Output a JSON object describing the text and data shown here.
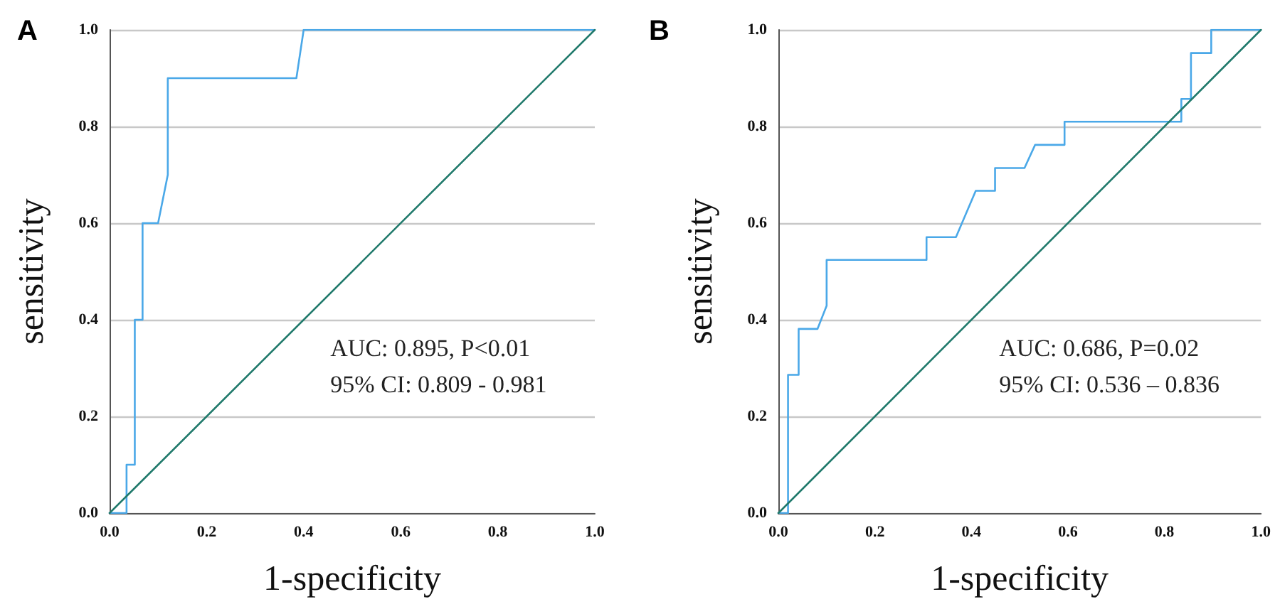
{
  "chart_data": [
    {
      "type": "line",
      "title": "A",
      "xlabel": "1-specificity",
      "ylabel": "sensitivity",
      "grid": "y",
      "marker": "none",
      "line_style": "solid",
      "xlim": [
        0,
        1
      ],
      "ylim": [
        0,
        1
      ],
      "xticks": [
        {
          "value": 0,
          "label": "0.0"
        },
        {
          "value": 0.2,
          "label": "0.2"
        },
        {
          "value": 0.4,
          "label": "0.4"
        },
        {
          "value": 0.6,
          "label": "0.6"
        },
        {
          "value": 0.8,
          "label": "0.8"
        },
        {
          "value": 1,
          "label": "1.0"
        }
      ],
      "yticks": [
        {
          "value": 0,
          "label": "0.0"
        },
        {
          "value": 0.2,
          "label": "0.2"
        },
        {
          "value": 0.4,
          "label": "0.4"
        },
        {
          "value": 0.6,
          "label": "0.6"
        },
        {
          "value": 0.8,
          "label": "0.8"
        },
        {
          "value": 1,
          "label": "1.0"
        }
      ],
      "series": [
        {
          "color": "#4aa8e8",
          "x": [
            0,
            0.035,
            0.035,
            0.052,
            0.052,
            0.068,
            0.068,
            0.1,
            0.12,
            0.12,
            0.385,
            0.4,
            1
          ],
          "values": [
            0,
            0,
            0.1,
            0.1,
            0.4,
            0.4,
            0.6,
            0.6,
            0.7,
            0.9,
            0.9,
            1,
            1
          ]
        },
        {
          "color": "#217a6c",
          "x": [
            0,
            1
          ],
          "values": [
            0,
            1
          ]
        }
      ],
      "annotations": [
        "AUC: 0.895, P<0.01",
        "95% CI: 0.809 - 0.981"
      ]
    },
    {
      "type": "line",
      "title": "B",
      "xlabel": "1-specificity",
      "ylabel": "sensitivity",
      "grid": "y",
      "marker": "none",
      "line_style": "solid",
      "xlim": [
        0,
        1
      ],
      "ylim": [
        0,
        1
      ],
      "xticks": [
        {
          "value": 0,
          "label": "0.0"
        },
        {
          "value": 0.2,
          "label": "0.2"
        },
        {
          "value": 0.4,
          "label": "0.4"
        },
        {
          "value": 0.6,
          "label": "0.6"
        },
        {
          "value": 0.8,
          "label": "0.8"
        },
        {
          "value": 1,
          "label": "1.0"
        }
      ],
      "yticks": [
        {
          "value": 0,
          "label": "0.0"
        },
        {
          "value": 0.2,
          "label": "0.2"
        },
        {
          "value": 0.4,
          "label": "0.4"
        },
        {
          "value": 0.6,
          "label": "0.6"
        },
        {
          "value": 0.8,
          "label": "0.8"
        },
        {
          "value": 1,
          "label": "1.0"
        }
      ],
      "series": [
        {
          "color": "#4aa8e8",
          "x": [
            0,
            0.02,
            0.02,
            0.042,
            0.042,
            0.081,
            0.1,
            0.1,
            0.307,
            0.307,
            0.368,
            0.409,
            0.449,
            0.449,
            0.51,
            0.532,
            0.593,
            0.593,
            0.835,
            0.835,
            0.855,
            0.855,
            0.897,
            0.897,
            1
          ],
          "values": [
            0,
            0,
            0.286,
            0.286,
            0.381,
            0.381,
            0.429,
            0.524,
            0.524,
            0.571,
            0.571,
            0.667,
            0.667,
            0.714,
            0.714,
            0.762,
            0.762,
            0.81,
            0.81,
            0.857,
            0.857,
            0.952,
            0.952,
            1,
            1
          ]
        },
        {
          "color": "#217a6c",
          "x": [
            0,
            1
          ],
          "values": [
            0,
            1
          ]
        }
      ],
      "annotations": [
        "AUC: 0.686, P=0.02",
        "95% CI: 0.536 – 0.836"
      ]
    }
  ]
}
